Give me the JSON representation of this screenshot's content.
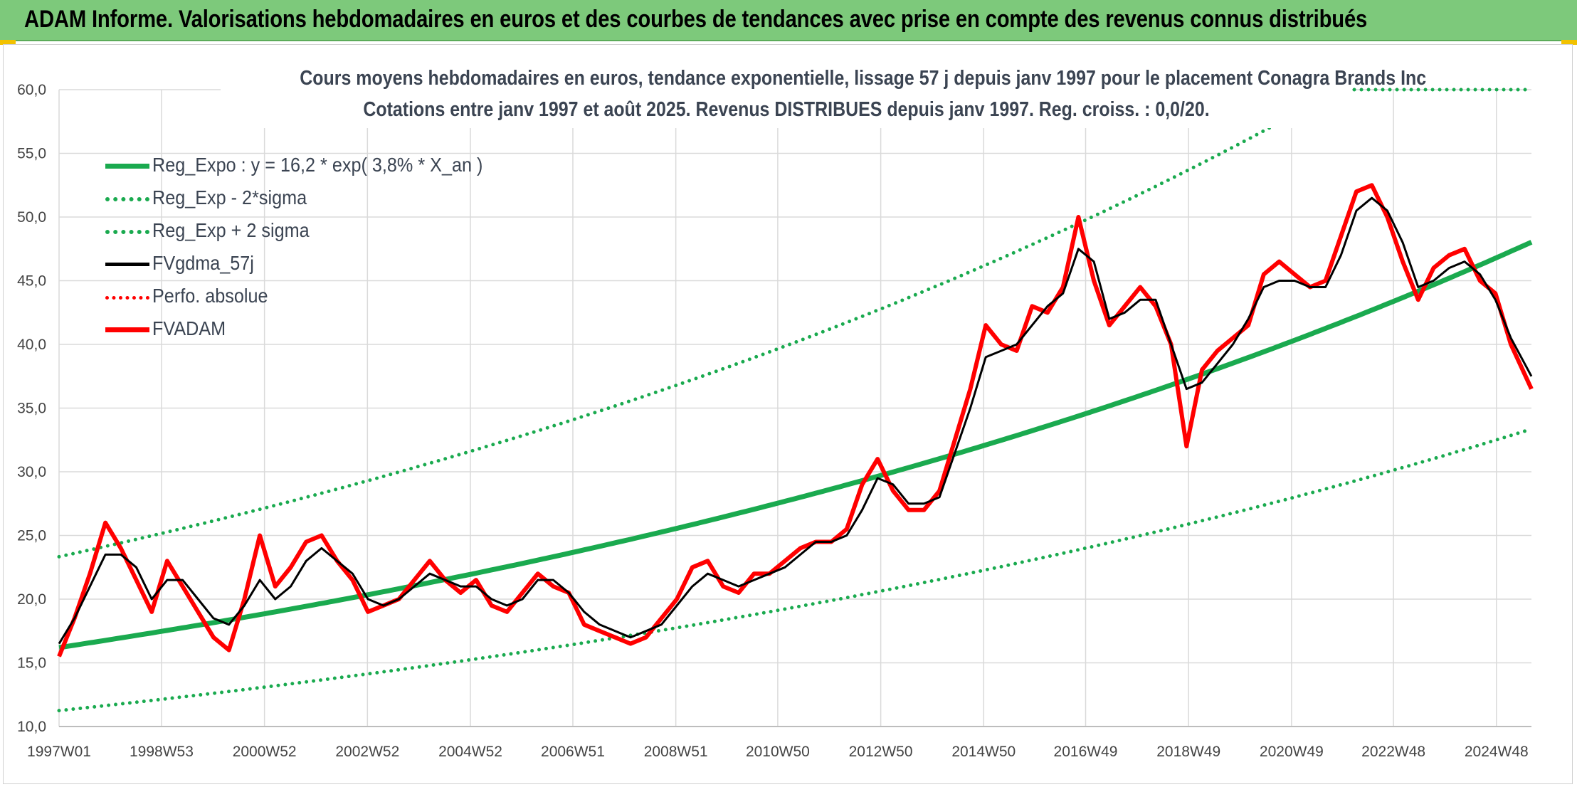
{
  "banner": {
    "title": "ADAM Informe. Valorisations hebdomadaires en euros et des courbes de tendances avec prise en compte des revenus connus distribués"
  },
  "colors": {
    "banner_bg": "#7dc97b",
    "regression": "#1aaa4f",
    "smoothed": "#000000",
    "price": "#ff0000",
    "grid": "#dadada"
  },
  "chart_data": {
    "type": "line",
    "title": "Cours moyens hebdomadaires en euros, tendance exponentielle, lissage 57 j depuis janv 1997 pour le placement Conagra Brands Inc",
    "subtitle": "Cotations entre janv 1997 et août 2025. Revenus DISTRIBUES depuis janv 1997. Reg. croiss. : 0,0/20.",
    "xlabel": "",
    "ylabel": "",
    "ylim": [
      10,
      60
    ],
    "yticks": [
      "10,0",
      "15,0",
      "20,0",
      "25,0",
      "30,0",
      "35,0",
      "40,0",
      "45,0",
      "50,0",
      "55,0",
      "60,0"
    ],
    "x_range": [
      1997.0,
      2025.6
    ],
    "xticks": [
      {
        "label": "1997W01",
        "x": 1997.0
      },
      {
        "label": "1998W53",
        "x": 1998.99
      },
      {
        "label": "2000W52",
        "x": 2000.99
      },
      {
        "label": "2002W52",
        "x": 2002.99
      },
      {
        "label": "2004W52",
        "x": 2004.99
      },
      {
        "label": "2006W51",
        "x": 2006.98
      },
      {
        "label": "2008W51",
        "x": 2008.98
      },
      {
        "label": "2010W50",
        "x": 2010.96
      },
      {
        "label": "2012W50",
        "x": 2012.96
      },
      {
        "label": "2014W50",
        "x": 2014.96
      },
      {
        "label": "2016W49",
        "x": 2016.94
      },
      {
        "label": "2018W49",
        "x": 2018.94
      },
      {
        "label": "2020W49",
        "x": 2020.94
      },
      {
        "label": "2022W48",
        "x": 2022.92
      },
      {
        "label": "2024W48",
        "x": 2024.92
      }
    ],
    "grid": true,
    "legend_position": "top-left",
    "regression": {
      "a": 16.2,
      "rate": 0.038,
      "sigma_factor": 1.44
    },
    "series": [
      {
        "name": "Reg_Expo : y = 16,2 * exp( 3,8% *  X_an )",
        "style": "solid-green"
      },
      {
        "name": "Reg_Exp - 2*sigma",
        "style": "dot-green"
      },
      {
        "name": "Reg_Exp + 2 sigma",
        "style": "dot-green"
      },
      {
        "name": "FVgdma_57j",
        "style": "solid-black",
        "x": [
          1997.0,
          1997.3,
          1997.6,
          1997.9,
          1998.2,
          1998.5,
          1998.8,
          1999.1,
          1999.4,
          1999.7,
          2000.0,
          2000.3,
          2000.6,
          2000.9,
          2001.2,
          2001.5,
          2001.8,
          2002.1,
          2002.4,
          2002.7,
          2003.0,
          2003.3,
          2003.6,
          2003.9,
          2004.2,
          2004.5,
          2004.8,
          2005.1,
          2005.4,
          2005.7,
          2006.0,
          2006.3,
          2006.6,
          2006.9,
          2007.2,
          2007.5,
          2007.8,
          2008.1,
          2008.4,
          2008.7,
          2009.0,
          2009.3,
          2009.6,
          2009.9,
          2010.2,
          2010.5,
          2010.8,
          2011.1,
          2011.4,
          2011.7,
          2012.0,
          2012.3,
          2012.6,
          2012.9,
          2013.2,
          2013.5,
          2013.8,
          2014.1,
          2014.4,
          2014.7,
          2015.0,
          2015.3,
          2015.6,
          2015.9,
          2016.2,
          2016.5,
          2016.8,
          2017.1,
          2017.4,
          2017.7,
          2018.0,
          2018.3,
          2018.6,
          2018.9,
          2019.2,
          2019.5,
          2019.8,
          2020.1,
          2020.4,
          2020.7,
          2021.0,
          2021.3,
          2021.6,
          2021.9,
          2022.2,
          2022.5,
          2022.8,
          2023.1,
          2023.4,
          2023.7,
          2024.0,
          2024.3,
          2024.6,
          2024.9,
          2025.2,
          2025.6
        ],
        "values": [
          16.5,
          18.5,
          21.0,
          23.5,
          23.5,
          22.5,
          20.0,
          21.5,
          21.5,
          20.0,
          18.5,
          18.0,
          19.5,
          21.5,
          20.0,
          21.0,
          23.0,
          24.0,
          23.0,
          22.0,
          20.0,
          19.5,
          20.0,
          21.0,
          22.0,
          21.5,
          21.0,
          21.0,
          20.0,
          19.5,
          20.0,
          21.5,
          21.5,
          20.5,
          19.0,
          18.0,
          17.5,
          17.0,
          17.5,
          18.0,
          19.5,
          21.0,
          22.0,
          21.5,
          21.0,
          21.5,
          22.0,
          22.5,
          23.5,
          24.5,
          24.5,
          25.0,
          27.0,
          29.5,
          29.0,
          27.5,
          27.5,
          28.0,
          31.5,
          35.0,
          39.0,
          39.5,
          40.0,
          41.5,
          43.0,
          44.0,
          47.5,
          46.5,
          42.0,
          42.5,
          43.5,
          43.5,
          40.0,
          36.5,
          37.0,
          38.5,
          40.0,
          42.0,
          44.5,
          45.0,
          45.0,
          44.5,
          44.5,
          47.0,
          50.5,
          51.5,
          50.5,
          48.0,
          44.5,
          45.0,
          46.0,
          46.5,
          45.5,
          43.5,
          40.5,
          37.5
        ]
      },
      {
        "name": "Perfo. absolue",
        "style": "dot-red"
      },
      {
        "name": "FVADAM",
        "style": "solid-red",
        "x": [
          1997.0,
          1997.3,
          1997.6,
          1997.9,
          1998.2,
          1998.5,
          1998.8,
          1999.1,
          1999.4,
          1999.7,
          2000.0,
          2000.3,
          2000.6,
          2000.9,
          2001.2,
          2001.5,
          2001.8,
          2002.1,
          2002.4,
          2002.7,
          2003.0,
          2003.3,
          2003.6,
          2003.9,
          2004.2,
          2004.5,
          2004.8,
          2005.1,
          2005.4,
          2005.7,
          2006.0,
          2006.3,
          2006.6,
          2006.9,
          2007.2,
          2007.5,
          2007.8,
          2008.1,
          2008.4,
          2008.7,
          2009.0,
          2009.3,
          2009.6,
          2009.9,
          2010.2,
          2010.5,
          2010.8,
          2011.1,
          2011.4,
          2011.7,
          2012.0,
          2012.3,
          2012.6,
          2012.9,
          2013.2,
          2013.5,
          2013.8,
          2014.1,
          2014.4,
          2014.7,
          2015.0,
          2015.3,
          2015.6,
          2015.9,
          2016.2,
          2016.5,
          2016.8,
          2017.1,
          2017.4,
          2017.7,
          2018.0,
          2018.3,
          2018.6,
          2018.9,
          2019.2,
          2019.5,
          2019.8,
          2020.1,
          2020.4,
          2020.7,
          2021.0,
          2021.3,
          2021.6,
          2021.9,
          2022.2,
          2022.5,
          2022.8,
          2023.1,
          2023.4,
          2023.7,
          2024.0,
          2024.3,
          2024.6,
          2024.9,
          2025.2,
          2025.6
        ],
        "values": [
          15.5,
          18.5,
          22.0,
          26.0,
          24.0,
          21.5,
          19.0,
          23.0,
          21.0,
          19.0,
          17.0,
          16.0,
          20.0,
          25.0,
          21.0,
          22.5,
          24.5,
          25.0,
          23.0,
          21.5,
          19.0,
          19.5,
          20.0,
          21.5,
          23.0,
          21.5,
          20.5,
          21.5,
          19.5,
          19.0,
          20.5,
          22.0,
          21.0,
          20.5,
          18.0,
          17.5,
          17.0,
          16.5,
          17.0,
          18.5,
          20.0,
          22.5,
          23.0,
          21.0,
          20.5,
          22.0,
          22.0,
          23.0,
          24.0,
          24.5,
          24.5,
          25.5,
          29.0,
          31.0,
          28.5,
          27.0,
          27.0,
          28.5,
          32.5,
          36.5,
          41.5,
          40.0,
          39.5,
          43.0,
          42.5,
          44.5,
          50.0,
          45.0,
          41.5,
          43.0,
          44.5,
          43.0,
          40.0,
          32.0,
          38.0,
          39.5,
          40.5,
          41.5,
          45.5,
          46.5,
          45.5,
          44.5,
          45.0,
          48.5,
          52.0,
          52.5,
          50.0,
          46.5,
          43.5,
          46.0,
          47.0,
          47.5,
          45.0,
          44.0,
          40.0,
          36.5
        ]
      }
    ]
  }
}
